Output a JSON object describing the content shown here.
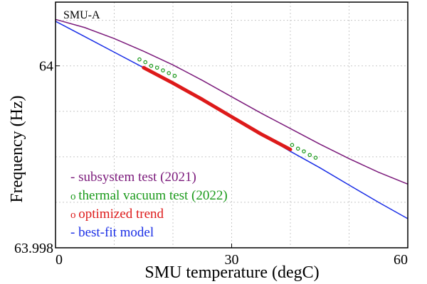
{
  "chart_data": {
    "type": "line",
    "xlabel": "SMU temperature (degC)",
    "ylabel": "Frequency (Hz)",
    "xlim": [
      0,
      60
    ],
    "ylim": [
      63.998,
      64.0007
    ],
    "x_ticks": [
      0,
      30,
      60
    ],
    "y_ticks": [
      63.998,
      64
    ],
    "x_tick_labels": [
      "0",
      "30",
      "60"
    ],
    "y_tick_labels": [
      "63.998",
      "64"
    ],
    "x_minor_grid": [
      10,
      20,
      40,
      50
    ],
    "y_minor_grid": [
      63.9985,
      63.999,
      63.9995,
      64.0005
    ],
    "grid": true,
    "annotation": "SMU-A",
    "legend_placement": "bottom-left",
    "series": [
      {
        "name": "subsystem test (2021)",
        "style": "line",
        "color": "#7b1a7b",
        "x": [
          0,
          5,
          10,
          15,
          20,
          25,
          30,
          35,
          40,
          45,
          50,
          55,
          60
        ],
        "y": [
          64.00051,
          64.00042,
          64.0003,
          64.00016,
          64.00001,
          63.99984,
          63.99966,
          63.99948,
          63.99931,
          63.99914,
          63.99898,
          63.99883,
          63.9987
        ]
      },
      {
        "name": "thermal vacuum test (2022)",
        "style": "circle",
        "color": "#1a9a1a",
        "x": [
          14.3,
          15.3,
          16.3,
          17.3,
          18.3,
          19.3,
          20.3,
          40.3,
          41.3,
          42.3,
          43.3,
          44.3
        ],
        "y": [
          64.00007,
          64.00004,
          64.0,
          63.99998,
          63.99995,
          63.99992,
          63.99989,
          63.99913,
          63.99909,
          63.99906,
          63.99902,
          63.99899
        ]
      },
      {
        "name": "optimized trend",
        "style": "thick",
        "color": "#dd1a1a",
        "x": [
          15,
          20,
          25,
          30,
          35,
          40
        ],
        "y": [
          63.99998,
          63.99981,
          63.99963,
          63.99944,
          63.99925,
          63.99908
        ]
      },
      {
        "name": "best-fit model",
        "style": "line",
        "color": "#1a2ee6",
        "x": [
          0,
          5,
          10,
          15,
          20,
          25,
          30,
          35,
          40,
          45,
          50,
          55,
          60
        ],
        "y": [
          64.00049,
          64.00032,
          64.00015,
          63.99998,
          63.9998,
          63.99962,
          63.99943,
          63.99925,
          63.99906,
          63.99888,
          63.99869,
          63.9985,
          63.99832
        ]
      }
    ]
  }
}
